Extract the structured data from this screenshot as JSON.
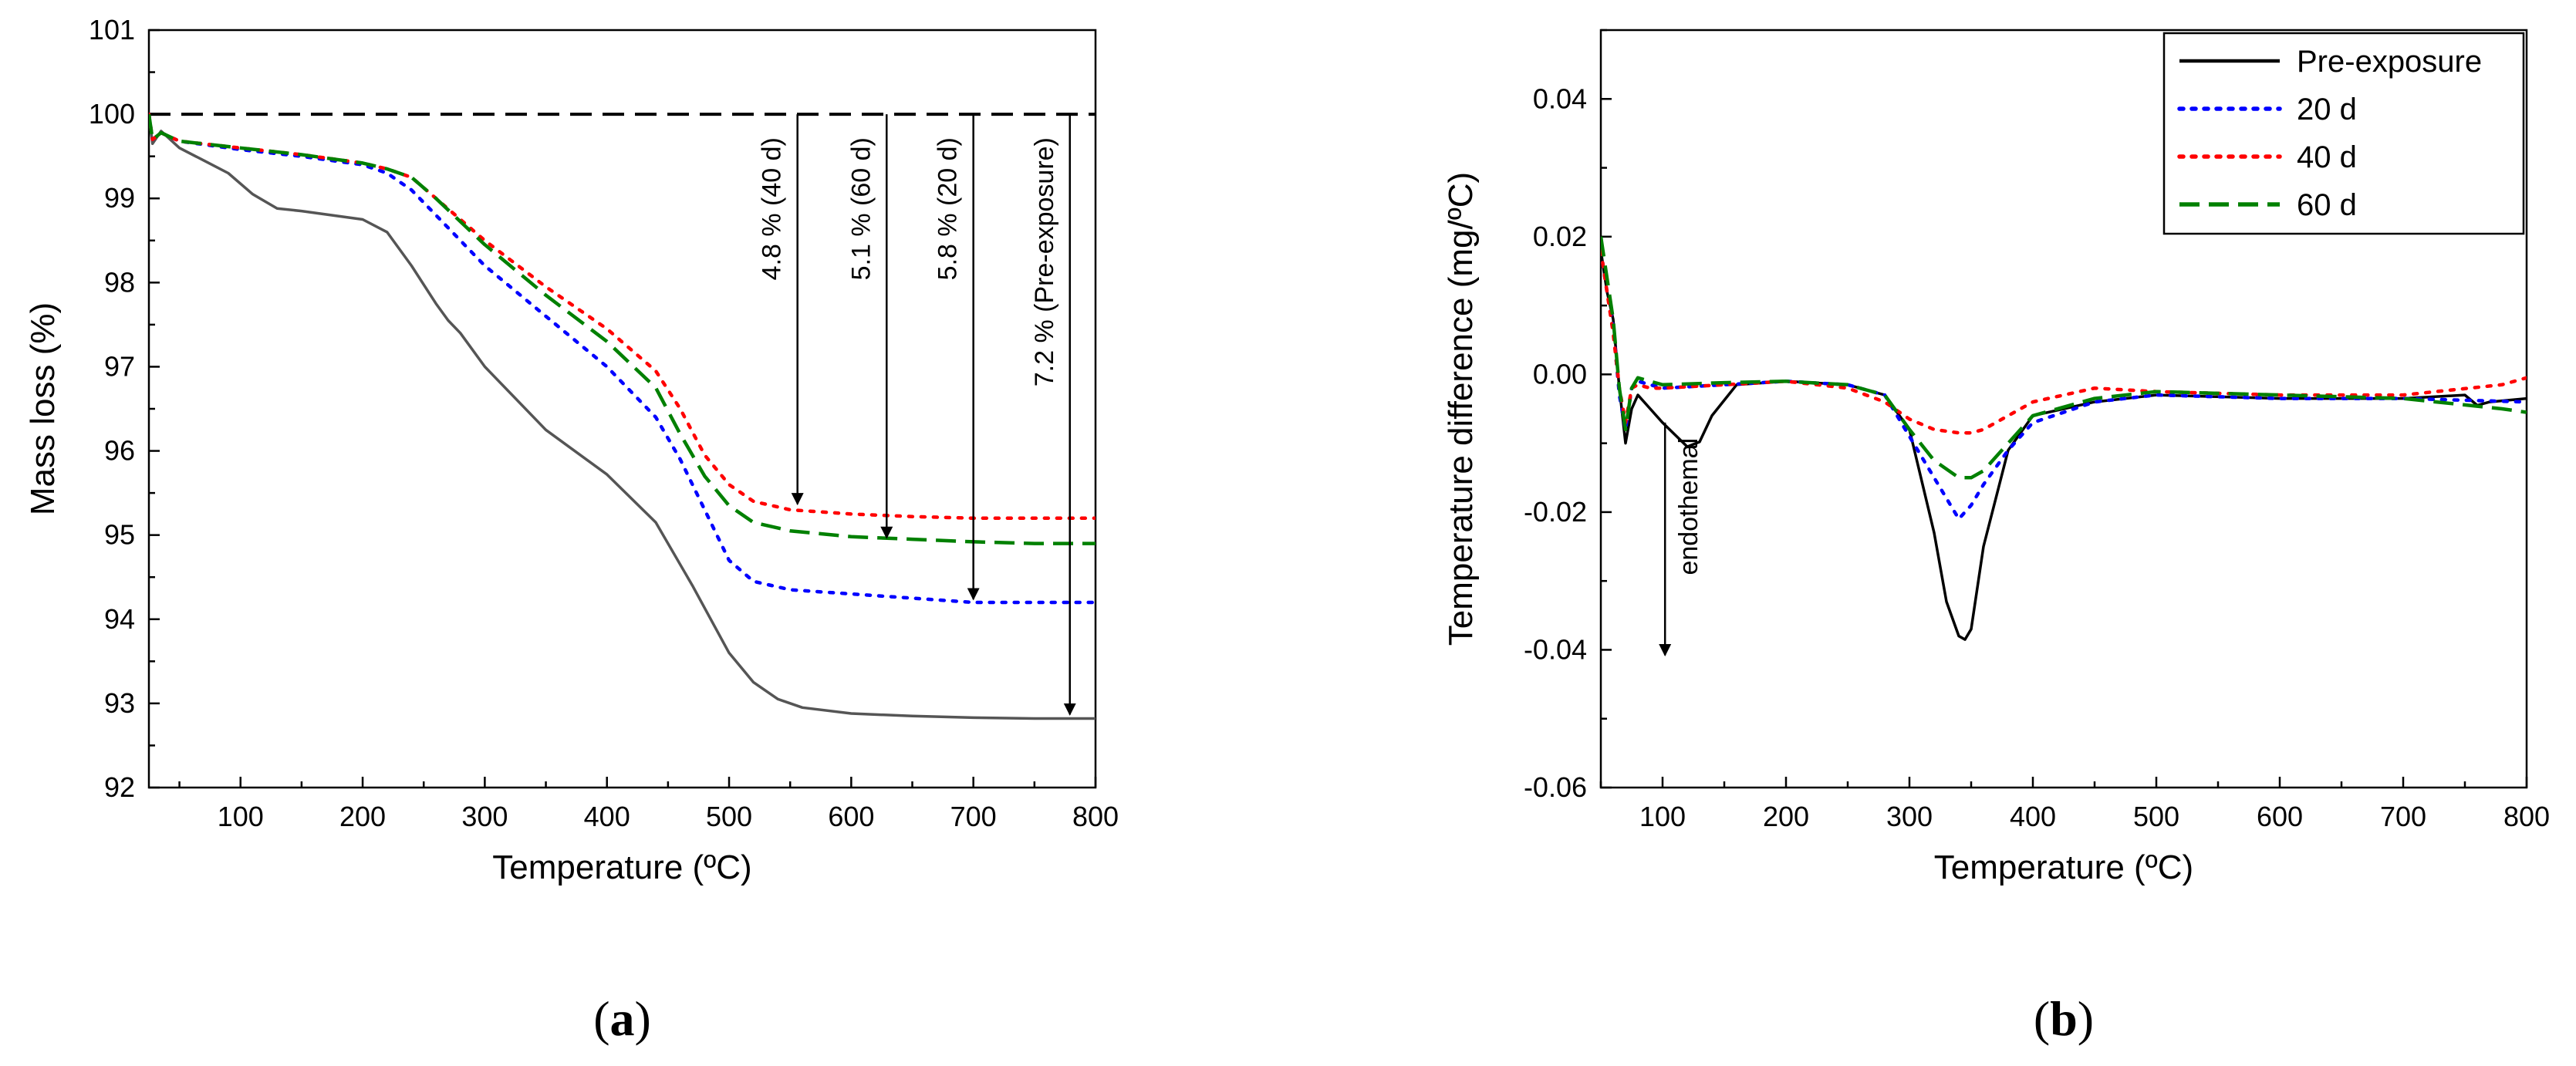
{
  "chart_data": [
    {
      "id": "a",
      "type": "line",
      "panel_label": "(a)",
      "panel_label_parts": [
        "(",
        "a",
        ")"
      ],
      "xlabel": "Temperature (ºC)",
      "ylabel": "Mass loss (%)",
      "xlim": [
        25,
        800
      ],
      "ylim": [
        92,
        101
      ],
      "xticks": [
        100,
        200,
        300,
        400,
        500,
        600,
        700,
        800
      ],
      "yticks": [
        92,
        93,
        94,
        95,
        96,
        97,
        98,
        99,
        100,
        101
      ],
      "legend": "none",
      "reference_line": {
        "y": 100,
        "style": "dashed",
        "color": "#000000"
      },
      "series": [
        {
          "name": "Pre-exposure",
          "color": "#555555",
          "style": "solid",
          "x": [
            25,
            28,
            35,
            50,
            70,
            90,
            110,
            130,
            150,
            200,
            220,
            240,
            260,
            270,
            280,
            300,
            350,
            400,
            440,
            470,
            500,
            520,
            540,
            560,
            600,
            650,
            700,
            750,
            800
          ],
          "y": [
            100,
            99.65,
            99.8,
            99.6,
            99.45,
            99.3,
            99.05,
            98.88,
            98.85,
            98.75,
            98.6,
            98.2,
            97.75,
            97.55,
            97.4,
            97.0,
            96.25,
            95.72,
            95.15,
            94.4,
            93.6,
            93.25,
            93.05,
            92.95,
            92.88,
            92.85,
            92.83,
            92.82,
            92.82
          ]
        },
        {
          "name": "20 d",
          "color": "#0000ff",
          "style": "dotted",
          "x": [
            25,
            28,
            35,
            50,
            100,
            150,
            200,
            220,
            240,
            260,
            300,
            350,
            400,
            440,
            460,
            480,
            500,
            520,
            550,
            600,
            650,
            700,
            750,
            800
          ],
          "y": [
            100,
            99.7,
            99.78,
            99.68,
            99.58,
            99.5,
            99.4,
            99.3,
            99.1,
            98.8,
            98.2,
            97.6,
            97.0,
            96.4,
            95.9,
            95.3,
            94.7,
            94.45,
            94.35,
            94.3,
            94.25,
            94.2,
            94.2,
            94.2
          ]
        },
        {
          "name": "40 d",
          "color": "#ff0000",
          "style": "dotted",
          "x": [
            25,
            28,
            35,
            50,
            100,
            150,
            200,
            220,
            240,
            260,
            300,
            350,
            400,
            440,
            460,
            480,
            500,
            520,
            550,
            600,
            650,
            700,
            750,
            800
          ],
          "y": [
            100,
            99.7,
            99.78,
            99.68,
            99.6,
            99.52,
            99.42,
            99.35,
            99.25,
            99.0,
            98.5,
            97.95,
            97.45,
            96.95,
            96.5,
            95.95,
            95.6,
            95.4,
            95.3,
            95.25,
            95.22,
            95.2,
            95.2,
            95.2
          ]
        },
        {
          "name": "60 d",
          "color": "#008000",
          "style": "dashed",
          "x": [
            25,
            28,
            35,
            50,
            100,
            150,
            200,
            220,
            240,
            260,
            300,
            350,
            400,
            440,
            460,
            480,
            500,
            520,
            550,
            600,
            650,
            700,
            750,
            800
          ],
          "y": [
            100,
            99.7,
            99.78,
            99.68,
            99.6,
            99.52,
            99.42,
            99.35,
            99.25,
            99.0,
            98.45,
            97.85,
            97.3,
            96.75,
            96.2,
            95.7,
            95.35,
            95.15,
            95.05,
            94.98,
            94.95,
            94.92,
            94.9,
            94.9
          ]
        }
      ],
      "annotations": [
        {
          "text": "4.8 % (40 d)",
          "x": 556,
          "y_from": 100,
          "y_to": 95.35
        },
        {
          "text": "5.1 % (60 d)",
          "x": 629,
          "y_from": 100,
          "y_to": 94.95
        },
        {
          "text": "5.8 % (20 d)",
          "x": 700,
          "y_from": 100,
          "y_to": 94.22
        },
        {
          "text": "7.2 % (Pre-exposure)",
          "x": 779,
          "y_from": 100,
          "y_to": 92.85
        }
      ]
    },
    {
      "id": "b",
      "type": "line",
      "panel_label": "(b)",
      "panel_label_parts": [
        "(",
        "b",
        ")"
      ],
      "xlabel": "Temperature (ºC)",
      "ylabel": "Temperature difference (mg/ºC)",
      "xlim": [
        50,
        800
      ],
      "ylim": [
        -0.06,
        0.05
      ],
      "xticks": [
        100,
        200,
        300,
        400,
        500,
        600,
        700,
        800
      ],
      "yticks": [
        -0.06,
        -0.04,
        -0.02,
        0.0,
        0.02,
        0.04
      ],
      "ytick_labels": [
        "-0.06",
        "-0.04",
        "-0.02",
        "0.00",
        "0.02",
        "0.04"
      ],
      "legend": "top-right",
      "series": [
        {
          "name": "Pre-exposure",
          "color": "#000000",
          "style": "solid",
          "x": [
            50,
            55,
            60,
            65,
            70,
            75,
            80,
            90,
            100,
            120,
            130,
            140,
            160,
            200,
            250,
            280,
            300,
            320,
            330,
            340,
            345,
            350,
            360,
            380,
            400,
            450,
            500,
            600,
            700,
            750,
            760,
            770,
            800
          ],
          "y": [
            0.018,
            0.012,
            0.008,
            -0.002,
            -0.01,
            -0.005,
            -0.003,
            -0.005,
            -0.007,
            -0.0105,
            -0.0098,
            -0.006,
            -0.0015,
            -0.001,
            -0.0015,
            -0.003,
            -0.008,
            -0.023,
            -0.033,
            -0.038,
            -0.0385,
            -0.037,
            -0.025,
            -0.011,
            -0.006,
            -0.004,
            -0.003,
            -0.0035,
            -0.0035,
            -0.003,
            -0.0045,
            -0.004,
            -0.0035
          ]
        },
        {
          "name": "20 d",
          "color": "#0000ff",
          "style": "dotted",
          "x": [
            50,
            55,
            60,
            65,
            70,
            75,
            80,
            90,
            100,
            150,
            200,
            250,
            280,
            300,
            320,
            340,
            350,
            360,
            380,
            400,
            450,
            500,
            600,
            700,
            800
          ],
          "y": [
            0.018,
            0.012,
            0.007,
            -0.003,
            -0.008,
            -0.002,
            -0.001,
            -0.0015,
            -0.002,
            -0.0015,
            -0.001,
            -0.0015,
            -0.003,
            -0.009,
            -0.015,
            -0.021,
            -0.019,
            -0.016,
            -0.011,
            -0.007,
            -0.004,
            -0.003,
            -0.0035,
            -0.0035,
            -0.004
          ]
        },
        {
          "name": "40 d",
          "color": "#ff0000",
          "style": "dotted",
          "x": [
            50,
            55,
            60,
            65,
            70,
            75,
            80,
            90,
            100,
            150,
            200,
            250,
            280,
            300,
            320,
            340,
            350,
            360,
            380,
            400,
            450,
            500,
            600,
            700,
            780,
            800
          ],
          "y": [
            0.018,
            0.012,
            0.006,
            -0.002,
            -0.007,
            -0.002,
            -0.0015,
            -0.002,
            -0.002,
            -0.0015,
            -0.001,
            -0.002,
            -0.004,
            -0.0065,
            -0.008,
            -0.0085,
            -0.0085,
            -0.008,
            -0.006,
            -0.004,
            -0.002,
            -0.0025,
            -0.003,
            -0.003,
            -0.0015,
            -0.0005
          ]
        },
        {
          "name": "60 d",
          "color": "#008000",
          "style": "dashed",
          "x": [
            50,
            55,
            60,
            65,
            70,
            75,
            80,
            90,
            100,
            150,
            200,
            250,
            280,
            300,
            320,
            340,
            350,
            360,
            380,
            400,
            450,
            500,
            600,
            700,
            780,
            800
          ],
          "y": [
            0.02,
            0.014,
            0.008,
            -0.002,
            -0.008,
            -0.002,
            -0.0005,
            -0.001,
            -0.0015,
            -0.0012,
            -0.001,
            -0.0015,
            -0.003,
            -0.008,
            -0.0125,
            -0.015,
            -0.015,
            -0.014,
            -0.01,
            -0.006,
            -0.0035,
            -0.0025,
            -0.003,
            -0.0035,
            -0.005,
            -0.0055
          ]
        }
      ],
      "annotations": [
        {
          "text": "endothemal",
          "arrow": "down",
          "x": 102,
          "y_from": -0.007,
          "y_to": -0.041
        }
      ]
    }
  ]
}
